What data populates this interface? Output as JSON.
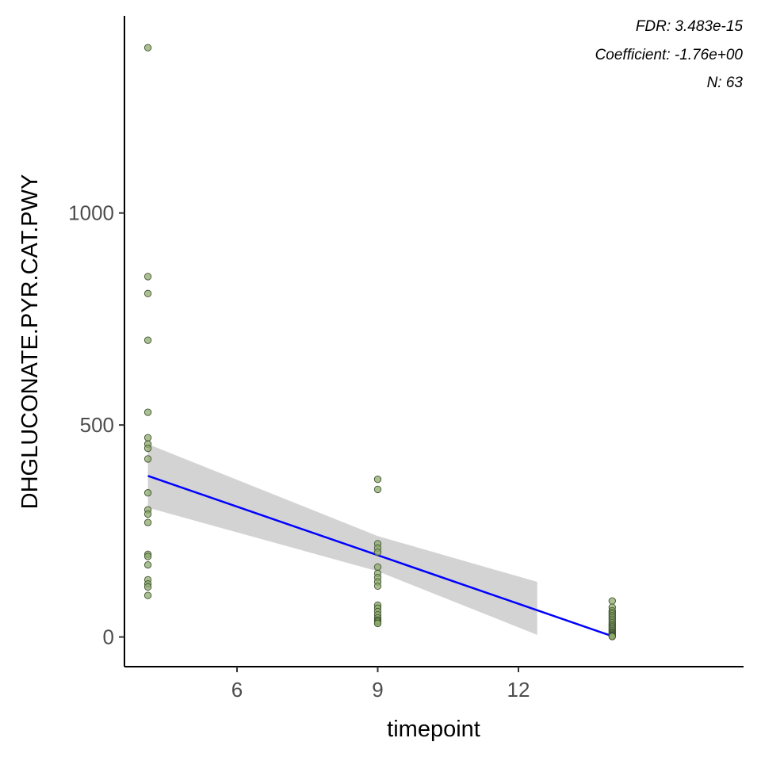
{
  "chart_data": {
    "type": "scatter",
    "xlabel": "timepoint",
    "ylabel": "DHGLUCONATE.PYR.CAT.PWY",
    "xlim": [
      3.6,
      16.8
    ],
    "ylim": [
      -70,
      1465
    ],
    "x_ticks": [
      6,
      9,
      12
    ],
    "y_ticks": [
      0,
      500,
      1000
    ],
    "x_tick_labels": [
      "6",
      "9",
      "12"
    ],
    "y_tick_labels": [
      "0",
      "500",
      "1000"
    ],
    "grid": false,
    "annotations": [
      "FDR: 3.483e-15",
      "Coefficient: -1.76e+00",
      "N: 63"
    ],
    "colors": {
      "points_fill": "#8faa6e",
      "points_stroke": "#3f5530",
      "fit_line": "#0000ff",
      "ribbon": "#d3d3d3",
      "axis": "#000000"
    },
    "points": [
      {
        "x": 4.1,
        "y": 1390
      },
      {
        "x": 4.1,
        "y": 850
      },
      {
        "x": 4.1,
        "y": 810
      },
      {
        "x": 4.1,
        "y": 700
      },
      {
        "x": 4.1,
        "y": 530
      },
      {
        "x": 4.1,
        "y": 470
      },
      {
        "x": 4.1,
        "y": 455
      },
      {
        "x": 4.1,
        "y": 445
      },
      {
        "x": 4.1,
        "y": 420
      },
      {
        "x": 4.1,
        "y": 340
      },
      {
        "x": 4.1,
        "y": 300
      },
      {
        "x": 4.1,
        "y": 290
      },
      {
        "x": 4.1,
        "y": 270
      },
      {
        "x": 4.1,
        "y": 195
      },
      {
        "x": 4.1,
        "y": 190
      },
      {
        "x": 4.1,
        "y": 170
      },
      {
        "x": 4.1,
        "y": 135
      },
      {
        "x": 4.1,
        "y": 125
      },
      {
        "x": 4.1,
        "y": 118
      },
      {
        "x": 4.1,
        "y": 98
      },
      {
        "x": 9,
        "y": 372
      },
      {
        "x": 9,
        "y": 348
      },
      {
        "x": 9,
        "y": 220
      },
      {
        "x": 9,
        "y": 210
      },
      {
        "x": 9,
        "y": 200
      },
      {
        "x": 9,
        "y": 165
      },
      {
        "x": 9,
        "y": 150
      },
      {
        "x": 9,
        "y": 140
      },
      {
        "x": 9,
        "y": 130
      },
      {
        "x": 9,
        "y": 120
      },
      {
        "x": 9,
        "y": 75
      },
      {
        "x": 9,
        "y": 68
      },
      {
        "x": 9,
        "y": 60
      },
      {
        "x": 9,
        "y": 52
      },
      {
        "x": 9,
        "y": 45
      },
      {
        "x": 9,
        "y": 40
      },
      {
        "x": 9,
        "y": 38
      },
      {
        "x": 9,
        "y": 35
      },
      {
        "x": 9,
        "y": 32
      },
      {
        "x": 14,
        "y": 85
      },
      {
        "x": 14,
        "y": 70
      },
      {
        "x": 14,
        "y": 62
      },
      {
        "x": 14,
        "y": 58
      },
      {
        "x": 14,
        "y": 54
      },
      {
        "x": 14,
        "y": 50
      },
      {
        "x": 14,
        "y": 46
      },
      {
        "x": 14,
        "y": 42
      },
      {
        "x": 14,
        "y": 38
      },
      {
        "x": 14,
        "y": 34
      },
      {
        "x": 14,
        "y": 30
      },
      {
        "x": 14,
        "y": 27
      },
      {
        "x": 14,
        "y": 24
      },
      {
        "x": 14,
        "y": 21
      },
      {
        "x": 14,
        "y": 18
      },
      {
        "x": 14,
        "y": 15
      },
      {
        "x": 14,
        "y": 12
      },
      {
        "x": 14,
        "y": 10
      },
      {
        "x": 14,
        "y": 8
      },
      {
        "x": 14,
        "y": 6
      },
      {
        "x": 14,
        "y": 4
      },
      {
        "x": 14,
        "y": 3
      },
      {
        "x": 14,
        "y": 2
      },
      {
        "x": 14,
        "y": 1
      }
    ],
    "fit_line": {
      "x": [
        4.1,
        14
      ],
      "y": [
        380,
        2
      ]
    },
    "confidence_band": {
      "x": [
        4.1,
        9,
        12.4
      ],
      "upper": [
        455,
        238,
        130
      ],
      "lower": [
        305,
        155,
        5
      ]
    }
  }
}
